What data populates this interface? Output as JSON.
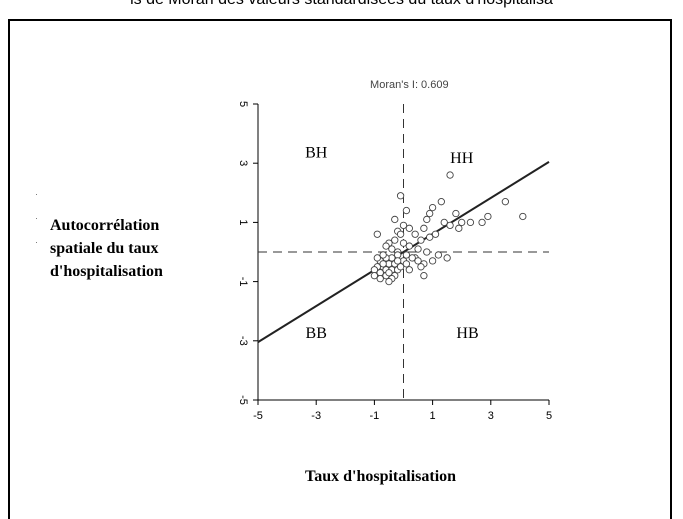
{
  "caption": "is de Moran des valeurs standardisées du taux d'hospitalisa",
  "chart_data": {
    "type": "scatter",
    "title": "Moran's I: 0.609",
    "xlabel": "Taux d'hospitalisation",
    "ylabel_lines": [
      "Autocorrélation",
      "spatiale du taux",
      "d'hospitalisation"
    ],
    "xlim": [
      -5,
      5
    ],
    "ylim": [
      -5,
      5
    ],
    "x_ticks": [
      "-5",
      "-3",
      "-1",
      "1",
      "3",
      "5"
    ],
    "y_ticks": [
      "-5",
      "-3",
      "-1",
      "1",
      "3",
      "5"
    ],
    "quadrants": {
      "top_left": "BH",
      "top_right": "HH",
      "bottom_left": "BB",
      "bottom_right": "HB"
    },
    "regression": {
      "slope": 0.609,
      "intercept": 0.0
    },
    "reference_lines": {
      "x": 0,
      "y": 0,
      "style": "dashed"
    },
    "grid": false,
    "points": [
      [
        1.6,
        2.6
      ],
      [
        -0.1,
        1.9
      ],
      [
        0.1,
        1.4
      ],
      [
        -0.9,
        0.6
      ],
      [
        -0.3,
        1.1
      ],
      [
        3.5,
        1.7
      ],
      [
        4.1,
        1.2
      ],
      [
        2.9,
        1.2
      ],
      [
        2.7,
        1.0
      ],
      [
        2.3,
        1.0
      ],
      [
        1.3,
        1.7
      ],
      [
        0.9,
        1.3
      ],
      [
        1.0,
        1.5
      ],
      [
        0.8,
        1.1
      ],
      [
        0.7,
        0.8
      ],
      [
        1.4,
        1.0
      ],
      [
        1.8,
        1.3
      ],
      [
        2.0,
        1.0
      ],
      [
        1.9,
        0.8
      ],
      [
        1.6,
        0.9
      ],
      [
        1.1,
        0.6
      ],
      [
        0.9,
        0.5
      ],
      [
        0.6,
        0.4
      ],
      [
        0.4,
        0.6
      ],
      [
        0.2,
        0.8
      ],
      [
        0.0,
        0.9
      ],
      [
        -0.2,
        0.7
      ],
      [
        0.2,
        0.2
      ],
      [
        0.0,
        0.3
      ],
      [
        -0.3,
        0.4
      ],
      [
        -0.1,
        0.6
      ],
      [
        -0.5,
        0.3
      ],
      [
        -0.2,
        0.0
      ],
      [
        -0.4,
        0.1
      ],
      [
        -0.6,
        0.2
      ],
      [
        0.5,
        0.1
      ],
      [
        0.8,
        0.0
      ],
      [
        1.0,
        -0.3
      ],
      [
        0.7,
        -0.4
      ],
      [
        0.4,
        -0.2
      ],
      [
        0.2,
        -0.6
      ],
      [
        0.3,
        -0.2
      ],
      [
        0.0,
        -0.3
      ],
      [
        -0.2,
        -0.1
      ],
      [
        -0.4,
        -0.2
      ],
      [
        -0.6,
        -0.2
      ],
      [
        -0.8,
        -0.3
      ],
      [
        -0.7,
        -0.5
      ],
      [
        -0.9,
        -0.5
      ],
      [
        -1.0,
        -0.6
      ],
      [
        -0.8,
        -0.7
      ],
      [
        -0.6,
        -0.6
      ],
      [
        -0.5,
        -0.4
      ],
      [
        -0.4,
        -0.6
      ],
      [
        -0.3,
        -0.4
      ],
      [
        -0.2,
        -0.6
      ],
      [
        -0.1,
        -0.5
      ],
      [
        0.1,
        -0.4
      ],
      [
        -0.6,
        -0.8
      ],
      [
        -0.8,
        -0.9
      ],
      [
        -1.0,
        -0.8
      ],
      [
        -0.5,
        -0.7
      ],
      [
        -0.3,
        -0.8
      ],
      [
        -0.4,
        -0.9
      ],
      [
        -0.7,
        -0.4
      ],
      [
        -0.9,
        -0.2
      ],
      [
        -0.7,
        -0.1
      ],
      [
        0.6,
        -0.5
      ],
      [
        0.7,
        -0.8
      ],
      [
        1.2,
        -0.1
      ],
      [
        1.5,
        -0.2
      ],
      [
        0.5,
        -0.3
      ],
      [
        0.1,
        -0.1
      ],
      [
        -0.5,
        -1.0
      ],
      [
        -0.2,
        -0.3
      ]
    ]
  }
}
